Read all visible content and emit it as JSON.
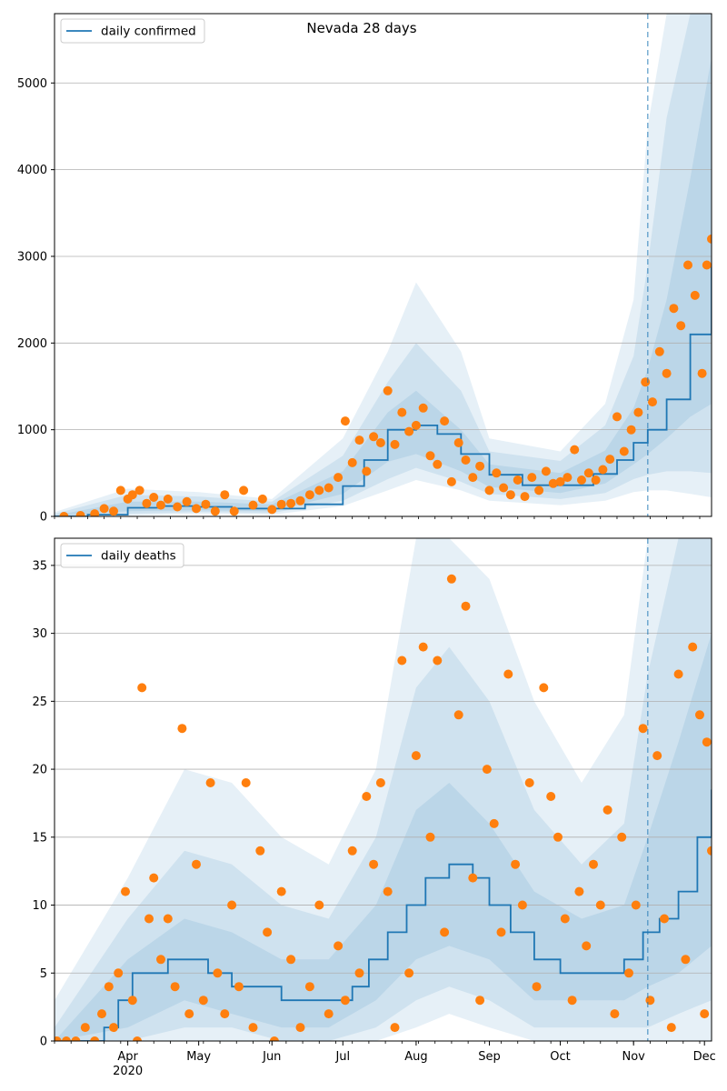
{
  "colors": {
    "model_line": "#1f77b4",
    "observed_points": "#ff7f0e",
    "band": "#1f77b4",
    "grid": "#b0b0b0"
  },
  "chart_data": [
    {
      "type": "line",
      "title": "Nevada 28 days",
      "legend": {
        "placement": "top-left",
        "label": "daily confirmed"
      },
      "grid": "horizontal",
      "ylim": [
        0,
        5800
      ],
      "yticks": [
        0,
        1000,
        2000,
        3000,
        4000,
        5000
      ],
      "xlim": [
        "2020-03-01",
        "2020-12-04"
      ],
      "forecast_start": "2020-11-07",
      "series_model": {
        "name": "daily confirmed",
        "x": [
          "2020-03-01",
          "2020-03-15",
          "2020-04-01",
          "2020-04-15",
          "2020-05-01",
          "2020-05-15",
          "2020-06-01",
          "2020-06-15",
          "2020-07-01",
          "2020-07-10",
          "2020-07-20",
          "2020-08-01",
          "2020-08-10",
          "2020-08-20",
          "2020-09-01",
          "2020-09-15",
          "2020-10-01",
          "2020-10-15",
          "2020-10-25",
          "2020-11-01",
          "2020-11-07",
          "2020-11-15",
          "2020-11-25",
          "2020-12-04"
        ],
        "y": [
          0,
          20,
          100,
          120,
          110,
          90,
          90,
          140,
          350,
          650,
          1000,
          1050,
          950,
          720,
          480,
          360,
          360,
          490,
          650,
          850,
          1000,
          1350,
          2100,
          2900
        ]
      },
      "bands": [
        {
          "x": [
            "2020-03-01",
            "2020-04-01",
            "2020-05-01",
            "2020-06-01",
            "2020-07-01",
            "2020-07-20",
            "2020-08-01",
            "2020-08-20",
            "2020-09-01",
            "2020-10-01",
            "2020-10-20",
            "2020-11-01",
            "2020-11-07",
            "2020-11-15",
            "2020-11-25",
            "2020-12-04"
          ],
          "low": [
            0,
            10,
            30,
            20,
            120,
            300,
            420,
            300,
            180,
            130,
            180,
            280,
            300,
            300,
            260,
            220
          ],
          "high": [
            50,
            320,
            280,
            200,
            900,
            1900,
            2700,
            1900,
            900,
            750,
            1300,
            2500,
            4500,
            5800,
            5800,
            5800
          ]
        },
        {
          "x": [
            "2020-03-01",
            "2020-04-01",
            "2020-05-01",
            "2020-06-01",
            "2020-07-01",
            "2020-07-20",
            "2020-08-01",
            "2020-08-20",
            "2020-09-01",
            "2020-10-01",
            "2020-10-20",
            "2020-11-01",
            "2020-11-07",
            "2020-11-15",
            "2020-11-25",
            "2020-12-04"
          ],
          "low": [
            0,
            30,
            50,
            40,
            180,
            430,
            560,
            400,
            260,
            200,
            270,
            430,
            480,
            520,
            520,
            500
          ],
          "high": [
            30,
            250,
            230,
            170,
            700,
            1550,
            2000,
            1450,
            750,
            640,
            1050,
            1850,
            2900,
            4600,
            5800,
            5800
          ]
        },
        {
          "x": [
            "2020-03-01",
            "2020-04-01",
            "2020-05-01",
            "2020-06-01",
            "2020-07-01",
            "2020-07-20",
            "2020-08-01",
            "2020-08-20",
            "2020-09-01",
            "2020-10-01",
            "2020-10-20",
            "2020-11-01",
            "2020-11-07",
            "2020-11-15",
            "2020-11-25",
            "2020-12-04"
          ],
          "low": [
            0,
            60,
            70,
            60,
            260,
            630,
            720,
            520,
            340,
            270,
            380,
            600,
            720,
            900,
            1150,
            1300
          ],
          "high": [
            10,
            170,
            170,
            140,
            520,
            1200,
            1450,
            1000,
            600,
            500,
            760,
            1250,
            1700,
            2500,
            3900,
            5300
          ]
        }
      ],
      "observed": {
        "x": [
          "2020-03-05",
          "2020-03-12",
          "2020-03-18",
          "2020-03-22",
          "2020-03-26",
          "2020-03-29",
          "2020-04-01",
          "2020-04-03",
          "2020-04-06",
          "2020-04-09",
          "2020-04-12",
          "2020-04-15",
          "2020-04-18",
          "2020-04-22",
          "2020-04-26",
          "2020-04-30",
          "2020-05-04",
          "2020-05-08",
          "2020-05-12",
          "2020-05-16",
          "2020-05-20",
          "2020-05-24",
          "2020-05-28",
          "2020-06-01",
          "2020-06-05",
          "2020-06-09",
          "2020-06-13",
          "2020-06-17",
          "2020-06-21",
          "2020-06-25",
          "2020-06-29",
          "2020-07-02",
          "2020-07-05",
          "2020-07-08",
          "2020-07-11",
          "2020-07-14",
          "2020-07-17",
          "2020-07-20",
          "2020-07-23",
          "2020-07-26",
          "2020-07-29",
          "2020-08-01",
          "2020-08-04",
          "2020-08-07",
          "2020-08-10",
          "2020-08-13",
          "2020-08-16",
          "2020-08-19",
          "2020-08-22",
          "2020-08-25",
          "2020-08-28",
          "2020-09-01",
          "2020-09-04",
          "2020-09-07",
          "2020-09-10",
          "2020-09-13",
          "2020-09-16",
          "2020-09-19",
          "2020-09-22",
          "2020-09-25",
          "2020-09-28",
          "2020-10-01",
          "2020-10-04",
          "2020-10-07",
          "2020-10-10",
          "2020-10-13",
          "2020-10-16",
          "2020-10-19",
          "2020-10-22",
          "2020-10-25",
          "2020-10-28",
          "2020-10-31",
          "2020-11-03",
          "2020-11-06",
          "2020-11-09",
          "2020-11-12",
          "2020-11-15",
          "2020-11-18",
          "2020-11-21",
          "2020-11-24",
          "2020-11-27",
          "2020-11-30",
          "2020-12-02",
          "2020-12-04"
        ],
        "y": [
          0,
          10,
          30,
          90,
          60,
          300,
          200,
          250,
          300,
          150,
          220,
          130,
          200,
          110,
          170,
          90,
          140,
          60,
          250,
          60,
          300,
          130,
          200,
          80,
          140,
          150,
          180,
          250,
          300,
          330,
          450,
          1100,
          620,
          880,
          520,
          920,
          850,
          1450,
          830,
          1200,
          980,
          1050,
          1250,
          700,
          600,
          1100,
          400,
          850,
          650,
          450,
          580,
          300,
          500,
          330,
          250,
          420,
          230,
          450,
          300,
          520,
          380,
          400,
          450,
          770,
          420,
          500,
          420,
          540,
          660,
          1150,
          750,
          1000,
          1200,
          1550,
          1320,
          1900,
          1650,
          2400,
          2200,
          2900,
          2550,
          1650,
          2900,
          3200
        ]
      }
    },
    {
      "type": "line",
      "title": "",
      "legend": {
        "placement": "top-left",
        "label": "daily deaths"
      },
      "grid": "horizontal",
      "ylim": [
        0,
        37
      ],
      "yticks": [
        0,
        5,
        10,
        15,
        20,
        25,
        30,
        35
      ],
      "xlim": [
        "2020-03-01",
        "2020-12-04"
      ],
      "forecast_start": "2020-11-07",
      "xticks": [
        {
          "date": "2020-04-01",
          "label": "Apr",
          "sublabel": "2020"
        },
        {
          "date": "2020-05-01",
          "label": "May"
        },
        {
          "date": "2020-06-01",
          "label": "Jun"
        },
        {
          "date": "2020-07-01",
          "label": "Jul"
        },
        {
          "date": "2020-08-01",
          "label": "Aug"
        },
        {
          "date": "2020-09-01",
          "label": "Sep"
        },
        {
          "date": "2020-10-01",
          "label": "Oct"
        },
        {
          "date": "2020-11-01",
          "label": "Nov"
        },
        {
          "date": "2020-12-01",
          "label": "Dec"
        }
      ],
      "series_model": {
        "name": "daily deaths",
        "x": [
          "2020-03-01",
          "2020-03-18",
          "2020-03-22",
          "2020-03-28",
          "2020-04-03",
          "2020-04-10",
          "2020-04-18",
          "2020-04-26",
          "2020-05-05",
          "2020-05-15",
          "2020-05-25",
          "2020-06-05",
          "2020-06-15",
          "2020-06-25",
          "2020-07-05",
          "2020-07-12",
          "2020-07-20",
          "2020-07-28",
          "2020-08-05",
          "2020-08-15",
          "2020-08-25",
          "2020-09-01",
          "2020-09-10",
          "2020-09-20",
          "2020-10-01",
          "2020-10-10",
          "2020-10-20",
          "2020-10-28",
          "2020-11-05",
          "2020-11-12",
          "2020-11-20",
          "2020-11-28",
          "2020-12-04"
        ],
        "y": [
          0,
          0,
          1,
          3,
          5,
          5,
          6,
          6,
          5,
          4,
          4,
          3,
          3,
          3,
          4,
          6,
          8,
          10,
          12,
          13,
          12,
          10,
          8,
          6,
          5,
          5,
          5,
          6,
          8,
          9,
          11,
          15,
          18.5
        ]
      },
      "bands": [
        {
          "x": [
            "2020-03-01",
            "2020-04-01",
            "2020-04-25",
            "2020-05-15",
            "2020-06-05",
            "2020-06-25",
            "2020-07-15",
            "2020-08-01",
            "2020-08-15",
            "2020-09-01",
            "2020-09-20",
            "2020-10-10",
            "2020-10-28",
            "2020-11-07",
            "2020-11-20",
            "2020-12-04"
          ],
          "low": [
            0,
            0,
            0,
            0,
            0,
            0,
            0,
            1,
            2,
            1,
            0,
            0,
            0,
            0,
            0,
            0
          ],
          "high": [
            3,
            12,
            20,
            19,
            15,
            13,
            20,
            37,
            37,
            34,
            25,
            19,
            24,
            37,
            37,
            37
          ]
        },
        {
          "x": [
            "2020-03-01",
            "2020-04-01",
            "2020-04-25",
            "2020-05-15",
            "2020-06-05",
            "2020-06-25",
            "2020-07-15",
            "2020-08-01",
            "2020-08-15",
            "2020-09-01",
            "2020-09-20",
            "2020-10-10",
            "2020-10-28",
            "2020-11-07",
            "2020-11-20",
            "2020-12-04"
          ],
          "low": [
            0,
            0,
            1,
            1,
            0,
            0,
            1,
            3,
            4,
            3,
            1,
            1,
            1,
            1,
            2,
            3
          ],
          "high": [
            1,
            9,
            14,
            13,
            10,
            9,
            15,
            26,
            29,
            25,
            17,
            13,
            16,
            27,
            37,
            37
          ]
        },
        {
          "x": [
            "2020-03-01",
            "2020-04-01",
            "2020-04-25",
            "2020-05-15",
            "2020-06-05",
            "2020-06-25",
            "2020-07-15",
            "2020-08-01",
            "2020-08-15",
            "2020-09-01",
            "2020-09-20",
            "2020-10-10",
            "2020-10-28",
            "2020-11-07",
            "2020-11-20",
            "2020-12-04"
          ],
          "low": [
            0,
            1,
            3,
            2,
            1,
            1,
            3,
            6,
            7,
            6,
            3,
            3,
            3,
            4,
            5,
            7
          ],
          "high": [
            0,
            6,
            9,
            8,
            6,
            6,
            10,
            17,
            19,
            16,
            11,
            9,
            10,
            15,
            22,
            30
          ]
        }
      ],
      "observed": {
        "x": [
          "2020-03-02",
          "2020-03-06",
          "2020-03-10",
          "2020-03-14",
          "2020-03-18",
          "2020-03-21",
          "2020-03-24",
          "2020-03-26",
          "2020-03-28",
          "2020-03-31",
          "2020-04-03",
          "2020-04-05",
          "2020-04-07",
          "2020-04-10",
          "2020-04-12",
          "2020-04-15",
          "2020-04-18",
          "2020-04-21",
          "2020-04-24",
          "2020-04-27",
          "2020-04-30",
          "2020-05-03",
          "2020-05-06",
          "2020-05-09",
          "2020-05-12",
          "2020-05-15",
          "2020-05-18",
          "2020-05-21",
          "2020-05-24",
          "2020-05-27",
          "2020-05-30",
          "2020-06-02",
          "2020-06-05",
          "2020-06-09",
          "2020-06-13",
          "2020-06-17",
          "2020-06-21",
          "2020-06-25",
          "2020-06-29",
          "2020-07-02",
          "2020-07-05",
          "2020-07-08",
          "2020-07-11",
          "2020-07-14",
          "2020-07-17",
          "2020-07-20",
          "2020-07-23",
          "2020-07-26",
          "2020-07-29",
          "2020-08-01",
          "2020-08-04",
          "2020-08-07",
          "2020-08-10",
          "2020-08-13",
          "2020-08-16",
          "2020-08-19",
          "2020-08-22",
          "2020-08-25",
          "2020-08-28",
          "2020-08-31",
          "2020-09-03",
          "2020-09-06",
          "2020-09-09",
          "2020-09-12",
          "2020-09-15",
          "2020-09-18",
          "2020-09-21",
          "2020-09-24",
          "2020-09-27",
          "2020-09-30",
          "2020-10-03",
          "2020-10-06",
          "2020-10-09",
          "2020-10-12",
          "2020-10-15",
          "2020-10-18",
          "2020-10-21",
          "2020-10-24",
          "2020-10-27",
          "2020-10-30",
          "2020-11-02",
          "2020-11-05",
          "2020-11-08",
          "2020-11-11",
          "2020-11-14",
          "2020-11-17",
          "2020-11-20",
          "2020-11-23",
          "2020-11-26",
          "2020-11-29",
          "2020-12-01",
          "2020-12-02",
          "2020-12-04"
        ],
        "y": [
          0,
          0,
          0,
          1,
          0,
          2,
          4,
          1,
          5,
          11,
          3,
          0,
          26,
          9,
          12,
          6,
          9,
          4,
          23,
          2,
          13,
          3,
          19,
          5,
          2,
          10,
          4,
          19,
          1,
          14,
          8,
          0,
          11,
          6,
          1,
          4,
          10,
          2,
          7,
          3,
          14,
          5,
          18,
          13,
          19,
          11,
          1,
          28,
          5,
          21,
          29,
          15,
          28,
          8,
          34,
          24,
          32,
          12,
          3,
          20,
          16,
          8,
          27,
          13,
          10,
          19,
          4,
          26,
          18,
          15,
          9,
          3,
          11,
          7,
          13,
          10,
          17,
          2,
          15,
          5,
          10,
          23,
          3,
          21,
          9,
          1,
          27,
          6,
          29,
          24,
          2,
          22,
          14
        ]
      }
    }
  ]
}
